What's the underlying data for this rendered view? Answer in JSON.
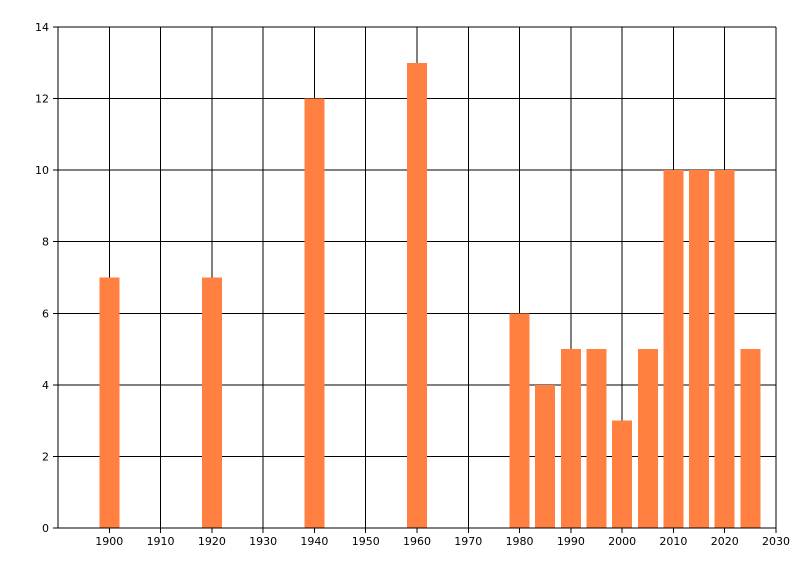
{
  "chart_data": {
    "type": "bar",
    "title": "",
    "xlabel": "",
    "ylabel": "",
    "x": [
      1900,
      1920,
      1940,
      1960,
      1980,
      1985,
      1990,
      1995,
      2000,
      2005,
      2010,
      2015,
      2020,
      2025
    ],
    "values": [
      7,
      7,
      12,
      13,
      6,
      4,
      5,
      5,
      3,
      5,
      10,
      10,
      10,
      5
    ],
    "xlim": [
      1890,
      2030
    ],
    "ylim": [
      0,
      14
    ],
    "x_ticks": [
      "1900",
      "1910",
      "1920",
      "1930",
      "1940",
      "1950",
      "1960",
      "1970",
      "1980",
      "1990",
      "2000",
      "2010",
      "2020",
      "2030"
    ],
    "y_ticks": [
      "0",
      "2",
      "4",
      "6",
      "8",
      "10",
      "12",
      "14"
    ],
    "grid": true,
    "bar_color": "#ff8040",
    "legend": "none"
  }
}
